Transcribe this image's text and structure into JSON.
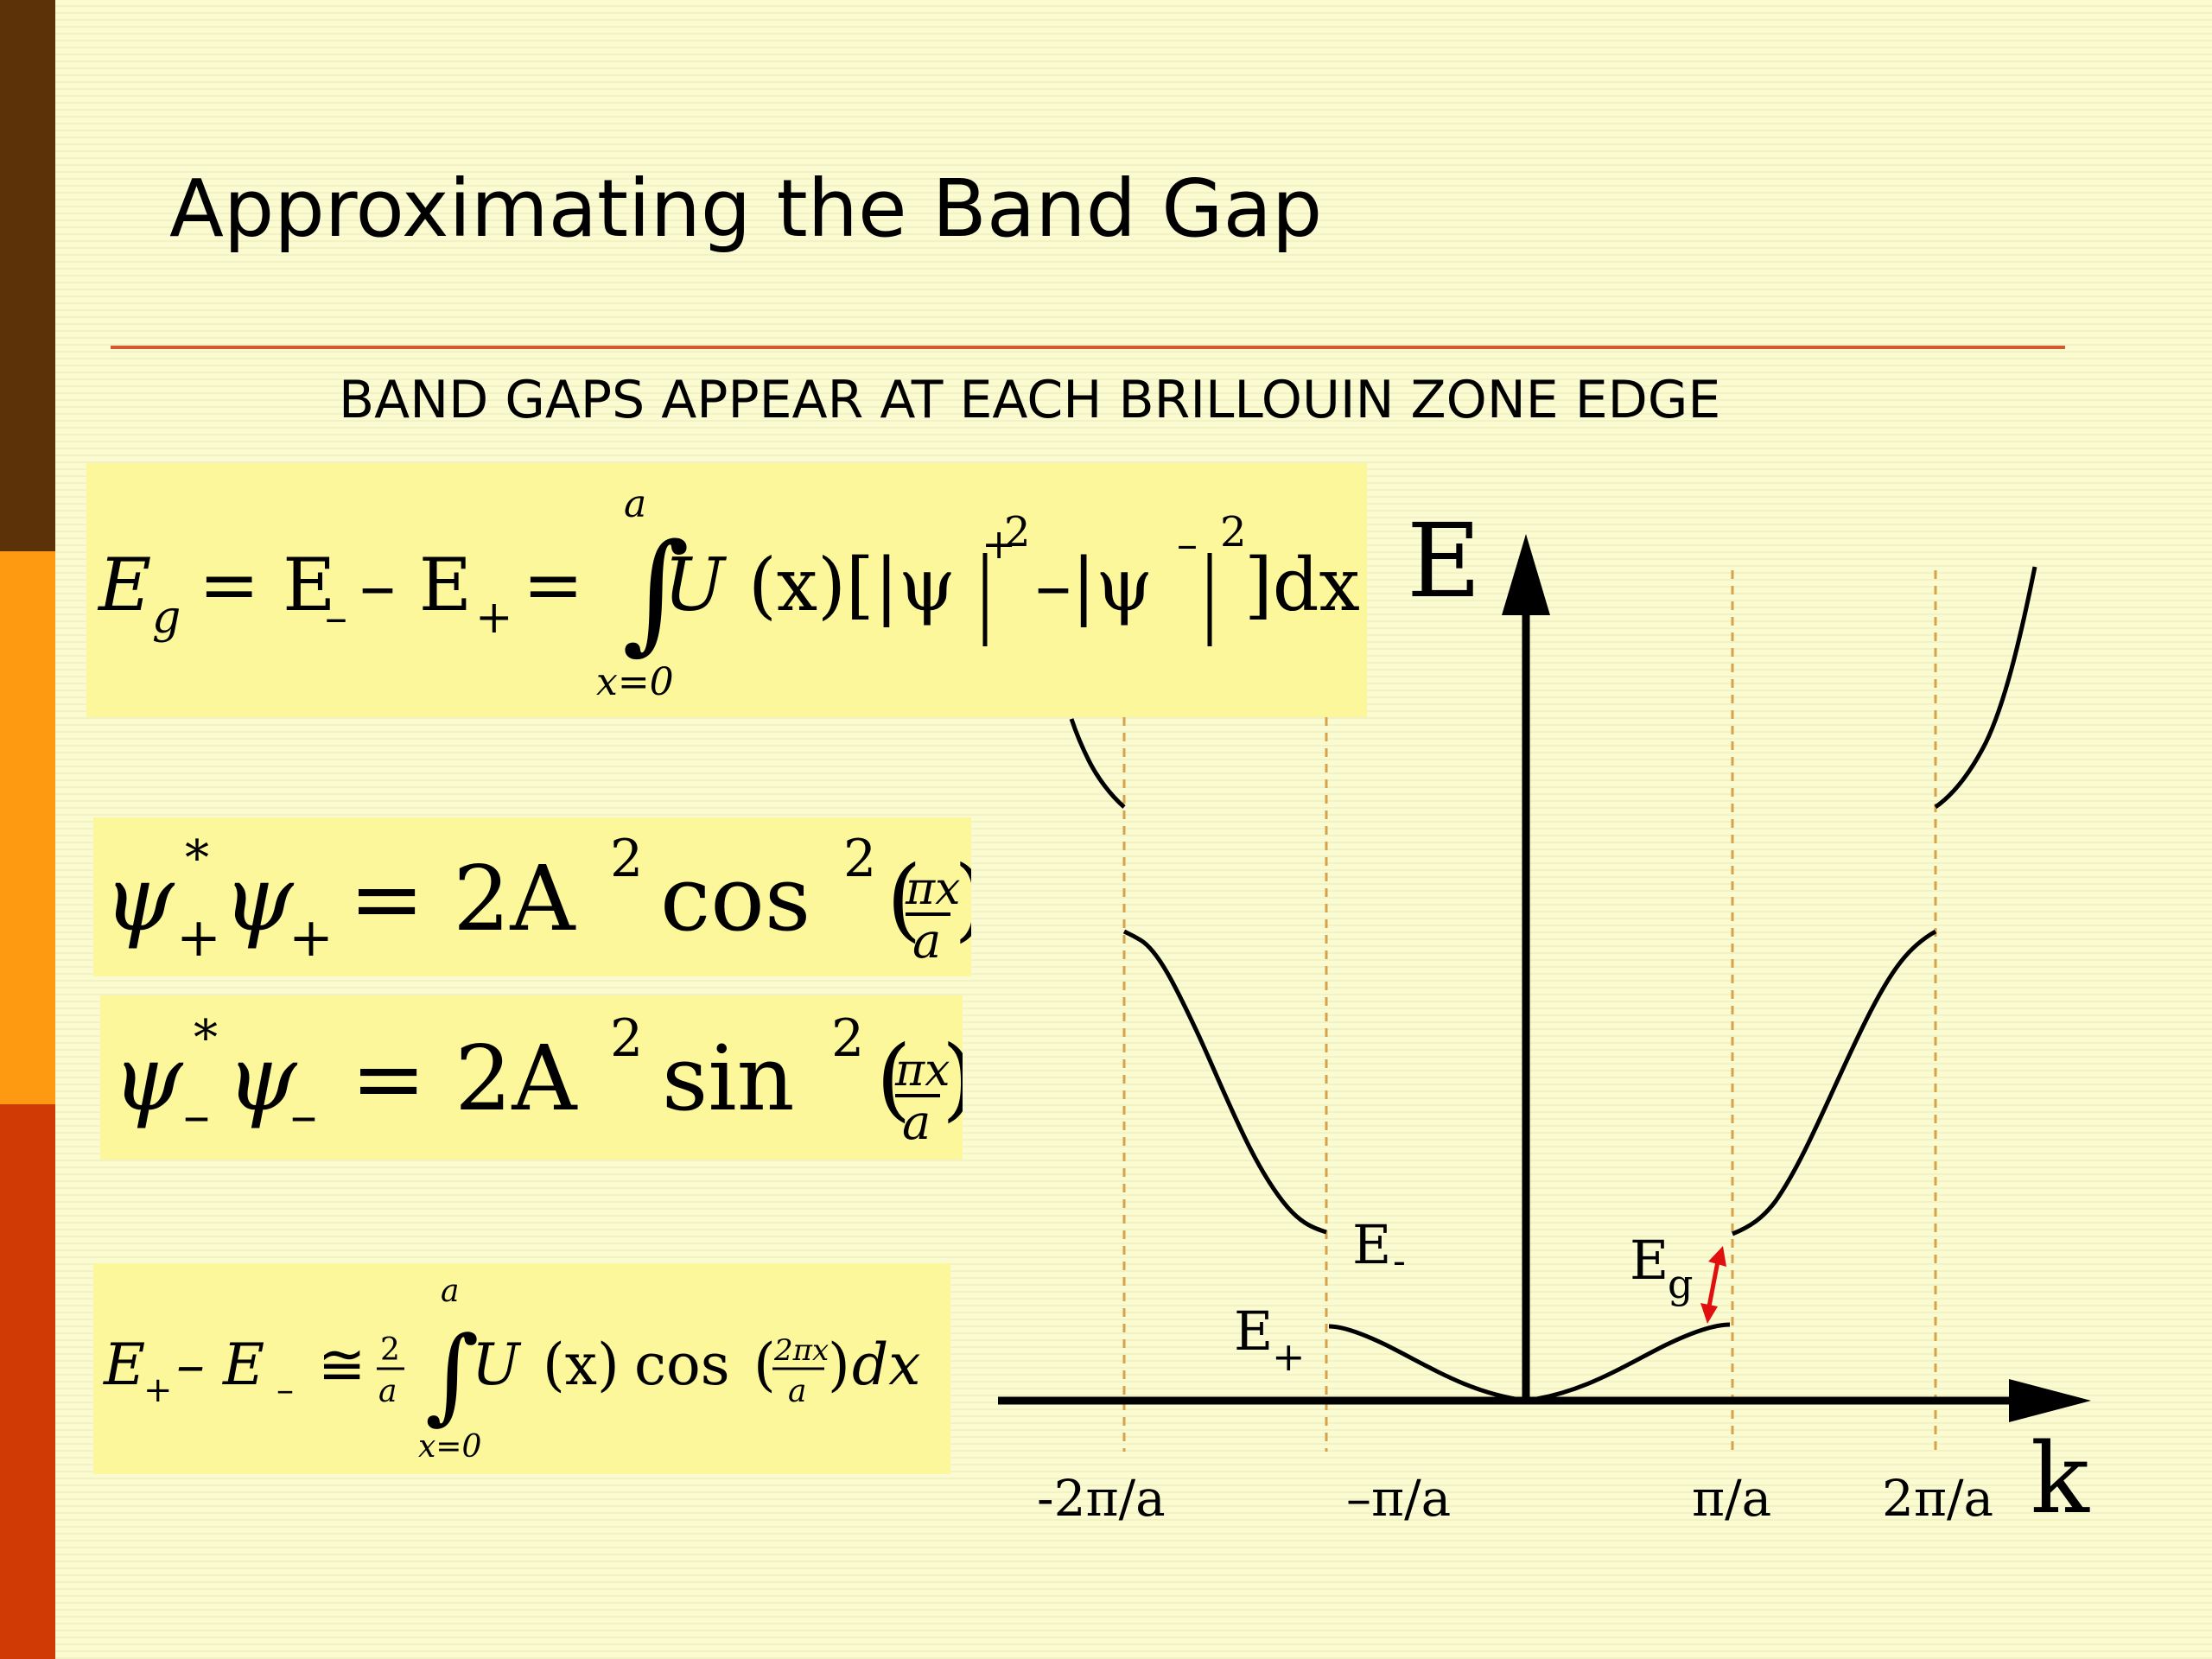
{
  "slide": {
    "title": "Approximating the Band Gap",
    "subtitle": "BAND GAPS APPEAR AT EACH BRILLOUIN ZONE EDGE"
  },
  "equations": {
    "eq1": {
      "lhs_E": "E",
      "lhs_sub": "g",
      "mid": "= E",
      "mid_sub": "–",
      "mid2": "– E",
      "mid2_sub": "+",
      "eq": "=",
      "upper": "a",
      "lower": "x=0",
      "integrand": "U",
      "arg": "(x)[|ψ",
      "sup1": "+",
      "pow1": "2",
      "minus": "–|ψ",
      "sup2": "–",
      "pow2": "2",
      "tail": "]dx"
    },
    "eq2": {
      "psi": "ψ",
      "star": "*",
      "sub": "+",
      "psi2": "ψ",
      "sub2": "+",
      "rhs": "= 2A",
      "pow": "2",
      "fn": "cos",
      "fpow": "2",
      "num": "πx",
      "den": "a"
    },
    "eq3": {
      "psi": "ψ",
      "star": "*",
      "sub": "–",
      "psi2": "ψ",
      "sub2": "–",
      "rhs": "= 2A",
      "pow": "2",
      "fn": "sin",
      "fpow": "2",
      "num": "πx",
      "den": "a"
    },
    "eq4": {
      "E1": "E",
      "sub1": "+",
      "E2": "– E",
      "sub2": "–",
      "approx": "≅",
      "frac_num": "2",
      "frac_den": "a",
      "upper": "a",
      "lower": "x=0",
      "integrand": "U",
      "arg": "(x)",
      "fn": "cos",
      "num": "2πx",
      "den": "a",
      "tail": "dx"
    }
  },
  "diagram": {
    "axis_y_label": "E",
    "axis_x_label": "k",
    "tick_labels": [
      "-2π/a",
      "–π/a",
      "π/a",
      "2π/a"
    ],
    "band_labels": {
      "e_minus": "E",
      "e_minus_sub": "-",
      "e_plus": "E",
      "e_plus_sub": "+",
      "eg": "E",
      "eg_sub": "g"
    },
    "colors": {
      "curve": "#000000",
      "guide": "#d8a24a",
      "gap_arrow": "#e01010"
    }
  }
}
